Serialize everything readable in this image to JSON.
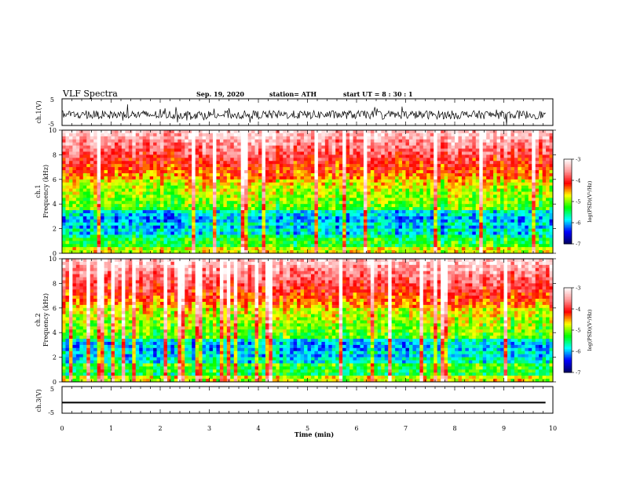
{
  "header": {
    "title": "VLF Spectra",
    "date": "Sep. 19, 2020",
    "station": "station= ATH",
    "start": "start  UT  =   8  : 30 : 1"
  },
  "chart_data": [
    {
      "type": "line",
      "ylabel": "ch.1(V)",
      "ylim": [
        -5,
        5
      ],
      "yticks": [
        "5",
        "-5"
      ],
      "note": "broadband waveform, noisy around about -1 V"
    },
    {
      "type": "heatmap",
      "ylabel_lines": [
        "ch.1",
        "Frequency  (kHz)"
      ],
      "ylim": [
        0,
        10
      ],
      "yticks": [
        0,
        2,
        4,
        6,
        8,
        10
      ],
      "colorbar": {
        "label": "log(PSD)(V²/Hz)",
        "ticks": [
          -3,
          -4,
          -5,
          -6,
          -7
        ],
        "range": [
          -7,
          -3
        ],
        "colors": [
          "#000060",
          "#0000ff",
          "#00ffff",
          "#00ff00",
          "#ffff00",
          "#ff0000",
          "#ff9999",
          "#ffffff"
        ]
      }
    },
    {
      "type": "heatmap",
      "ylabel_lines": [
        "ch.2",
        "Frequency  (kHz)"
      ],
      "ylim": [
        0,
        10
      ],
      "yticks": [
        0,
        2,
        4,
        6,
        8,
        10
      ],
      "colorbar": {
        "label": "log(PSD)(V²/Hz)",
        "ticks": [
          -3,
          -4,
          -5,
          -6,
          -7
        ],
        "range": [
          -7,
          -3
        ],
        "colors": [
          "#000060",
          "#0000ff",
          "#00ffff",
          "#00ff00",
          "#ffff00",
          "#ff0000",
          "#ff9999",
          "#ffffff"
        ]
      }
    },
    {
      "type": "line",
      "ylabel": "ch.3(V)",
      "ylim": [
        -5,
        5
      ],
      "yticks": [
        "5",
        "-5"
      ],
      "note": "near-flat trace at about -1 V"
    }
  ],
  "xaxis": {
    "label": "Time  (min)",
    "xlim": [
      0,
      10
    ],
    "ticks": [
      "0",
      "1",
      "2",
      "3",
      "4",
      "5",
      "6",
      "7",
      "8",
      "9",
      "10"
    ]
  }
}
